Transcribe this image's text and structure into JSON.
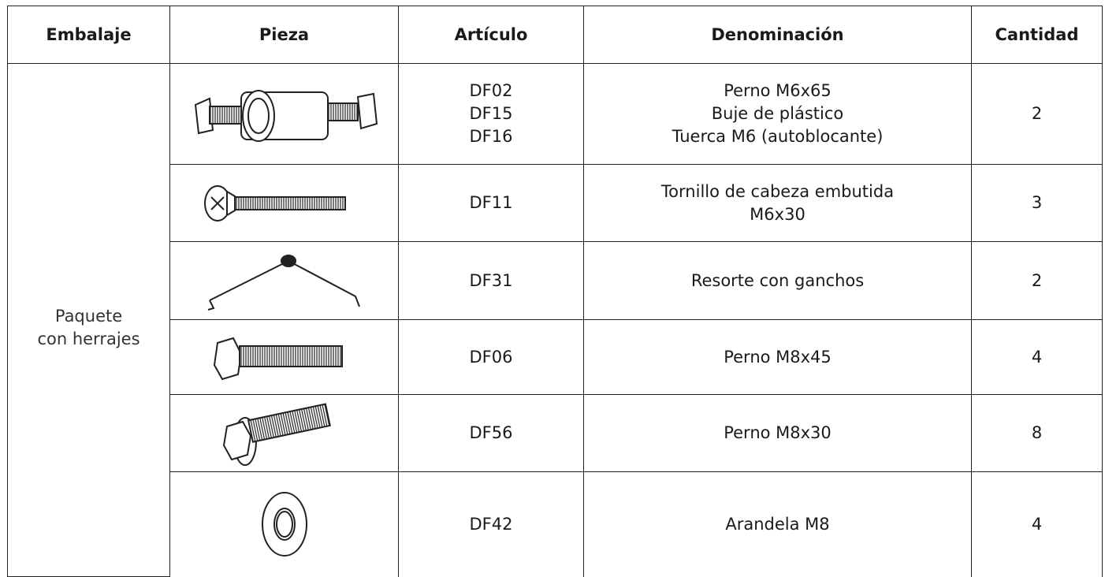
{
  "table": {
    "header": [
      "Embalaje",
      "Pieza",
      "Artículo",
      "Denominación",
      "Cantidad"
    ],
    "package": [
      "Paquete",
      "con herrajes"
    ],
    "rows": [
      {
        "articles": [
          "DF02",
          "DF15",
          "DF16"
        ],
        "names": [
          "Perno M6x65",
          "Buje de plástico",
          "Tuerca M6 (autoblocante)"
        ],
        "quantity": 2
      },
      {
        "articles": [
          "DF11"
        ],
        "names": [
          "Tornillo de cabeza embutida",
          "M6x30"
        ],
        "quantity": 3
      },
      {
        "articles": [
          "DF31"
        ],
        "names": [
          "Resorte con ganchos"
        ],
        "quantity": 2
      },
      {
        "articles": [
          "DF06"
        ],
        "names": [
          "Perno M8x45"
        ],
        "quantity": 4
      },
      {
        "articles": [
          "DF56"
        ],
        "names": [
          "Perno M8x30"
        ],
        "quantity": 8
      },
      {
        "articles": [
          "DF42"
        ],
        "names": [
          "Arandela M8"
        ],
        "quantity": 4
      }
    ]
  }
}
